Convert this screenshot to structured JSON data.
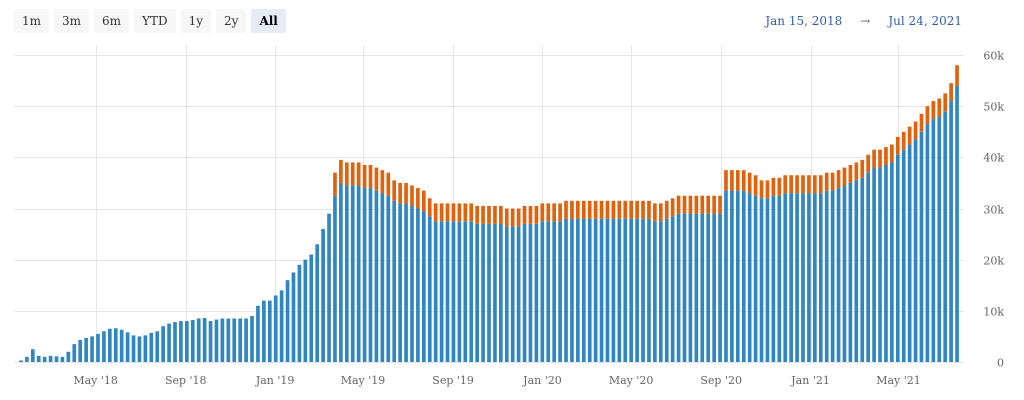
{
  "range_selector": {
    "buttons": [
      "1m",
      "3m",
      "6m",
      "YTD",
      "1y",
      "2y",
      "All"
    ],
    "active": "All"
  },
  "date_range": {
    "from": "Jan 15, 2018",
    "arrow": "→",
    "to": "Jul 24, 2021"
  },
  "chart_data": {
    "type": "bar",
    "stacked": true,
    "x_start": "2018-01-15",
    "x_end": "2021-07-24",
    "x_ticks": [
      {
        "label": "May '18",
        "date": "2018-05-01"
      },
      {
        "label": "Sep '18",
        "date": "2018-09-01"
      },
      {
        "label": "Jan '19",
        "date": "2019-01-01"
      },
      {
        "label": "May '19",
        "date": "2019-05-01"
      },
      {
        "label": "Sep '19",
        "date": "2019-09-01"
      },
      {
        "label": "Jan '20",
        "date": "2020-01-01"
      },
      {
        "label": "May '20",
        "date": "2020-05-01"
      },
      {
        "label": "Sep '20",
        "date": "2020-09-01"
      },
      {
        "label": "Jan '21",
        "date": "2021-01-01"
      },
      {
        "label": "May '21",
        "date": "2021-05-01"
      }
    ],
    "y_ticks": [
      "0",
      "10k",
      "20k",
      "30k",
      "40k",
      "50k",
      "60k"
    ],
    "ylim": [
      0,
      60000
    ],
    "grid": {
      "horizontal": true,
      "vertical": true
    },
    "colors": {
      "blue": "#2f86c1",
      "orange": "#e0620d"
    },
    "blue": [
      300,
      1000,
      2500,
      1200,
      1000,
      1200,
      1100,
      1000,
      2000,
      3500,
      4300,
      4700,
      5000,
      5500,
      6000,
      6500,
      6600,
      6300,
      5800,
      5200,
      5000,
      5200,
      5700,
      6000,
      7000,
      7500,
      7800,
      8000,
      8000,
      8200,
      8500,
      8600,
      8000,
      8300,
      8500,
      8500,
      8500,
      8500,
      8500,
      9000,
      11000,
      12000,
      12000,
      13000,
      14000,
      16000,
      17500,
      19000,
      20000,
      21000,
      23000,
      26000,
      29000,
      32500,
      35000,
      34500,
      34500,
      34500,
      34000,
      34000,
      33500,
      33000,
      32500,
      31500,
      31000,
      31000,
      30500,
      30000,
      29500,
      28500,
      27500,
      27500,
      27500,
      27500,
      27500,
      27500,
      27500,
      27000,
      27000,
      27000,
      27000,
      27000,
      26500,
      26500,
      26500,
      27000,
      27000,
      27000,
      27500,
      27500,
      27500,
      27500,
      28000,
      28000,
      28000,
      28000,
      28000,
      28000,
      28000,
      28000,
      28000,
      28000,
      28000,
      28000,
      28000,
      28000,
      28000,
      27500,
      27500,
      28000,
      28500,
      29000,
      29000,
      29000,
      29000,
      29000,
      29000,
      29000,
      29000,
      33500,
      33500,
      33500,
      33500,
      33000,
      32500,
      32000,
      32000,
      32500,
      32500,
      33000,
      33000,
      33000,
      33000,
      33000,
      33000,
      33000,
      33500,
      33500,
      34000,
      34500,
      35000,
      35500,
      36000,
      37000,
      38000,
      38000,
      38500,
      39000,
      40500,
      41500,
      42500,
      43500,
      45000,
      46500,
      47500,
      48000,
      49000,
      51000,
      54000
    ],
    "orange": [
      0,
      0,
      0,
      0,
      0,
      0,
      0,
      0,
      0,
      0,
      0,
      0,
      0,
      0,
      0,
      0,
      0,
      0,
      0,
      0,
      0,
      0,
      0,
      0,
      0,
      0,
      0,
      0,
      0,
      0,
      0,
      0,
      0,
      0,
      0,
      0,
      0,
      0,
      0,
      0,
      0,
      0,
      0,
      0,
      0,
      0,
      0,
      0,
      0,
      0,
      0,
      0,
      0,
      4500,
      4500,
      4500,
      4500,
      4500,
      4500,
      4500,
      4500,
      4500,
      4500,
      4000,
      4000,
      4000,
      4000,
      4000,
      4000,
      3500,
      3500,
      3500,
      3500,
      3500,
      3500,
      3500,
      3500,
      3500,
      3500,
      3500,
      3500,
      3500,
      3500,
      3500,
      3500,
      3500,
      3500,
      3500,
      3500,
      3500,
      3500,
      3500,
      3500,
      3500,
      3500,
      3500,
      3500,
      3500,
      3500,
      3500,
      3500,
      3500,
      3500,
      3500,
      3500,
      3500,
      3500,
      3500,
      3500,
      3500,
      3500,
      3500,
      3500,
      3500,
      3500,
      3500,
      3500,
      3500,
      3500,
      4000,
      4000,
      4000,
      4000,
      4000,
      4000,
      3500,
      3500,
      3500,
      3500,
      3500,
      3500,
      3500,
      3500,
      3500,
      3500,
      3500,
      3500,
      3500,
      3500,
      3500,
      3500,
      3500,
      3500,
      3500,
      3500,
      3500,
      3500,
      3500,
      3500,
      3500,
      3500,
      3500,
      3500,
      3500,
      3500,
      3500,
      3500,
      3500,
      4000,
      4500
    ]
  }
}
